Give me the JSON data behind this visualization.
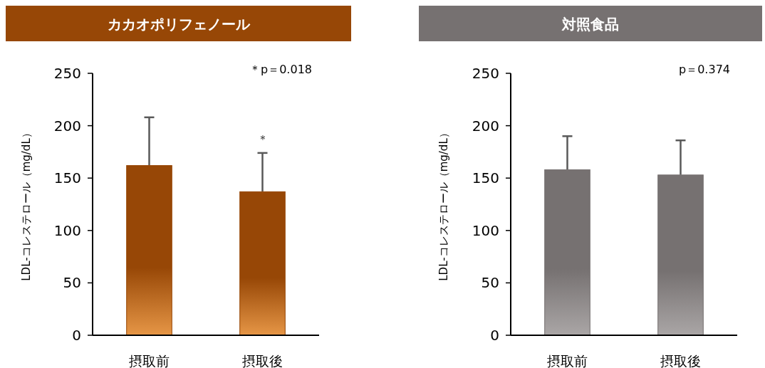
{
  "chart_data": [
    {
      "type": "bar",
      "title": "カカオポリフェノール",
      "ylabel": "LDL-コレステロール（mg/dL）",
      "categories": [
        "摂取前",
        "摂取後"
      ],
      "series": [
        {
          "color": "#974706",
          "values": [
            162,
            137
          ],
          "errors": [
            [
              162,
              208
            ],
            [
              137,
              174
            ]
          ]
        }
      ],
      "ylim": [
        0,
        250
      ],
      "yticks": [
        0,
        50,
        100,
        150,
        200,
        250
      ],
      "annotations": [
        "＊p＝0.018",
        "＊"
      ]
    },
    {
      "type": "bar",
      "title": "対照食品",
      "ylabel": "LDL-コレステロール（mg/dL）",
      "categories": [
        "摂取前",
        "摂取後"
      ],
      "series": [
        {
          "color": "#767171",
          "values": [
            158,
            153
          ],
          "errors": [
            [
              158,
              190
            ],
            [
              153,
              186
            ]
          ]
        }
      ],
      "ylim": [
        0,
        250
      ],
      "yticks": [
        0,
        50,
        100,
        150,
        200,
        250
      ],
      "annotations": [
        "p＝0.374"
      ]
    }
  ]
}
